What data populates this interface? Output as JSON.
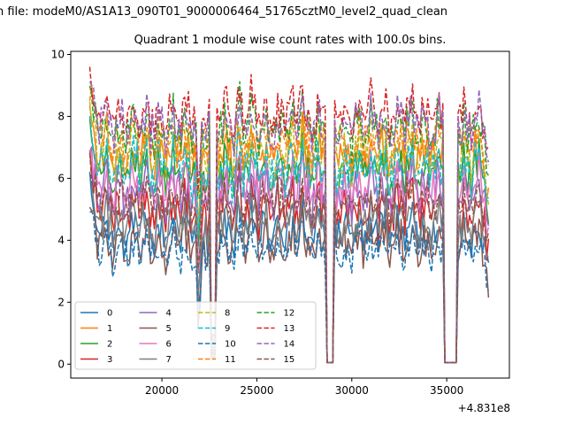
{
  "chart_data": {
    "type": "line",
    "suptitle": "n file: modeM0/AS1A13_090T01_9000006464_51765cztM0_level2_quad_clean",
    "title": "Quadrant 1 module wise count rates with 100.0s bins.",
    "xlabel": "",
    "ylabel": "",
    "x_offset_label": "+4.831e8",
    "xlim": [
      15200,
      38300
    ],
    "ylim": [
      -0.45,
      10.1
    ],
    "xticks": [
      20000,
      25000,
      30000,
      35000
    ],
    "xtick_labels": [
      "20000",
      "25000",
      "30000",
      "35000"
    ],
    "yticks": [
      0,
      2,
      4,
      6,
      8,
      10
    ],
    "ytick_labels": [
      "0",
      "2",
      "4",
      "6",
      "8",
      "10"
    ],
    "x_start": 16200,
    "x_end": 37200,
    "x_step": 100,
    "gaps": [
      {
        "start": 22550,
        "end": 22800,
        "min": 0.2
      },
      {
        "start": 28700,
        "end": 29000,
        "min": 0.0
      },
      {
        "start": 34900,
        "end": 35500,
        "min": 0.0
      }
    ],
    "series": [
      {
        "name": "0",
        "color": "#1f77b4",
        "dash": "solid",
        "level": 4.3
      },
      {
        "name": "1",
        "color": "#ff7f0e",
        "dash": "solid",
        "level": 6.8
      },
      {
        "name": "2",
        "color": "#2ca02c",
        "dash": "solid",
        "level": 6.2
      },
      {
        "name": "3",
        "color": "#d62728",
        "dash": "solid",
        "level": 5.0
      },
      {
        "name": "4",
        "color": "#9467bd",
        "dash": "solid",
        "level": 5.6
      },
      {
        "name": "5",
        "color": "#8c564b",
        "dash": "solid",
        "level": 3.9
      },
      {
        "name": "6",
        "color": "#e377c2",
        "dash": "solid",
        "level": 5.8
      },
      {
        "name": "7",
        "color": "#7f7f7f",
        "dash": "solid",
        "level": 4.6
      },
      {
        "name": "8",
        "color": "#bcbd22",
        "dash": "dashed",
        "level": 6.9
      },
      {
        "name": "9",
        "color": "#17becf",
        "dash": "dashed",
        "level": 6.4
      },
      {
        "name": "10",
        "color": "#1f77b4",
        "dash": "dashed",
        "level": 3.7
      },
      {
        "name": "11",
        "color": "#ff7f0e",
        "dash": "dashed",
        "level": 7.3
      },
      {
        "name": "12",
        "color": "#2ca02c",
        "dash": "dashed",
        "level": 7.6
      },
      {
        "name": "13",
        "color": "#d62728",
        "dash": "dashed",
        "level": 8.1
      },
      {
        "name": "14",
        "color": "#9467bd",
        "dash": "dashed",
        "level": 7.8
      },
      {
        "name": "15",
        "color": "#8c564b",
        "dash": "dashed",
        "level": 5.3
      }
    ],
    "legend_position": "lower-left",
    "legend_columns": 4
  }
}
